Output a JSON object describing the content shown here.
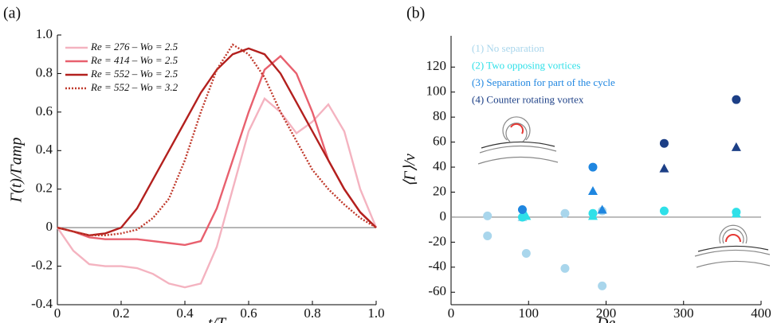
{
  "chart_data": [
    {
      "type": "line",
      "panel": "(a)",
      "xlabel": "t/T",
      "ylabel": "Γ(t)/Γamp",
      "x": [
        0,
        0.05,
        0.1,
        0.15,
        0.2,
        0.25,
        0.3,
        0.35,
        0.4,
        0.45,
        0.5,
        0.55,
        0.6,
        0.65,
        0.7,
        0.75,
        0.8,
        0.85,
        0.9,
        0.95,
        1.0
      ],
      "xlim": [
        0,
        1
      ],
      "ylim": [
        -0.4,
        1
      ],
      "xticks": [
        0,
        0.2,
        0.4,
        0.6,
        0.8,
        {
          "value": 1,
          "label": "1.0"
        }
      ],
      "yticks": [
        -0.4,
        -0.2,
        0,
        0.2,
        0.4,
        0.6,
        0.8,
        {
          "value": 1,
          "label": "1.0"
        }
      ],
      "series": [
        {
          "name": "Re = 276 – Wo = 2.5",
          "color": "#f4b3c0",
          "dash": false,
          "values": [
            0,
            -0.12,
            -0.19,
            -0.2,
            -0.2,
            -0.21,
            -0.24,
            -0.29,
            -0.31,
            -0.29,
            -0.1,
            0.2,
            0.5,
            0.67,
            0.6,
            0.49,
            0.55,
            0.64,
            0.5,
            0.2,
            0
          ]
        },
        {
          "name": "Re = 414 – Wo = 2.5",
          "color": "#e8606e",
          "dash": false,
          "values": [
            0,
            -0.02,
            -0.05,
            -0.06,
            -0.06,
            -0.06,
            -0.07,
            -0.08,
            -0.09,
            -0.07,
            0.1,
            0.35,
            0.6,
            0.82,
            0.89,
            0.8,
            0.6,
            0.35,
            0.2,
            0.08,
            0
          ]
        },
        {
          "name": "Re = 552 – Wo = 2.5",
          "color": "#b3201e",
          "dash": false,
          "values": [
            0,
            -0.02,
            -0.04,
            -0.03,
            0,
            0.1,
            0.25,
            0.4,
            0.55,
            0.7,
            0.82,
            0.9,
            0.93,
            0.9,
            0.8,
            0.65,
            0.5,
            0.35,
            0.2,
            0.08,
            0
          ]
        },
        {
          "name": "Re = 552 – Wo = 3.2",
          "color": "#c0392b",
          "dash": true,
          "values": [
            0,
            -0.02,
            -0.04,
            -0.04,
            -0.03,
            -0.01,
            0.05,
            0.15,
            0.35,
            0.6,
            0.82,
            0.95,
            0.9,
            0.78,
            0.6,
            0.45,
            0.3,
            0.2,
            0.12,
            0.05,
            0
          ]
        }
      ]
    },
    {
      "type": "scatter",
      "panel": "(b)",
      "xlabel": "De",
      "ylabel": "⟨Γ⟩/ν",
      "xlim": [
        0,
        400
      ],
      "ylim": [
        -70,
        145
      ],
      "xticks": [
        0,
        100,
        200,
        300,
        400
      ],
      "yticks": [
        -60,
        -40,
        -20,
        0,
        20,
        40,
        60,
        80,
        100,
        120
      ],
      "series": [
        {
          "name": "(1) No separation",
          "color": "#a9d6ec",
          "x": [
            47,
            47,
            97,
            147,
            147,
            195,
            195,
            92
          ],
          "values": [
            1,
            -15,
            -29,
            -41,
            3,
            -55,
            5,
            0
          ],
          "markers": [
            "circle",
            "circle",
            "circle",
            "circle",
            "circle",
            "circle",
            "circle",
            "triangle"
          ]
        },
        {
          "name": "(2) Two opposing vortices",
          "color": "#2fe0e8",
          "x": [
            92,
            97,
            183,
            183,
            275,
            368,
            368
          ],
          "values": [
            0,
            1,
            3,
            1,
            5,
            4,
            3
          ],
          "markers": [
            "circle",
            "triangle",
            "circle",
            "triangle",
            "circle",
            "circle",
            "triangle"
          ]
        },
        {
          "name": "(3) Separation for part of the cycle",
          "color": "#1f86e0",
          "x": [
            92,
            183,
            183,
            195
          ],
          "values": [
            6,
            40,
            21,
            6
          ],
          "markers": [
            "circle",
            "circle",
            "triangle",
            "triangle"
          ]
        },
        {
          "name": "(4) Counter rotating vortex",
          "color": "#1c3f86",
          "x": [
            275,
            275,
            368,
            368
          ],
          "values": [
            59,
            39,
            94,
            56
          ],
          "markers": [
            "circle",
            "triangle",
            "circle",
            "triangle"
          ]
        }
      ]
    }
  ]
}
